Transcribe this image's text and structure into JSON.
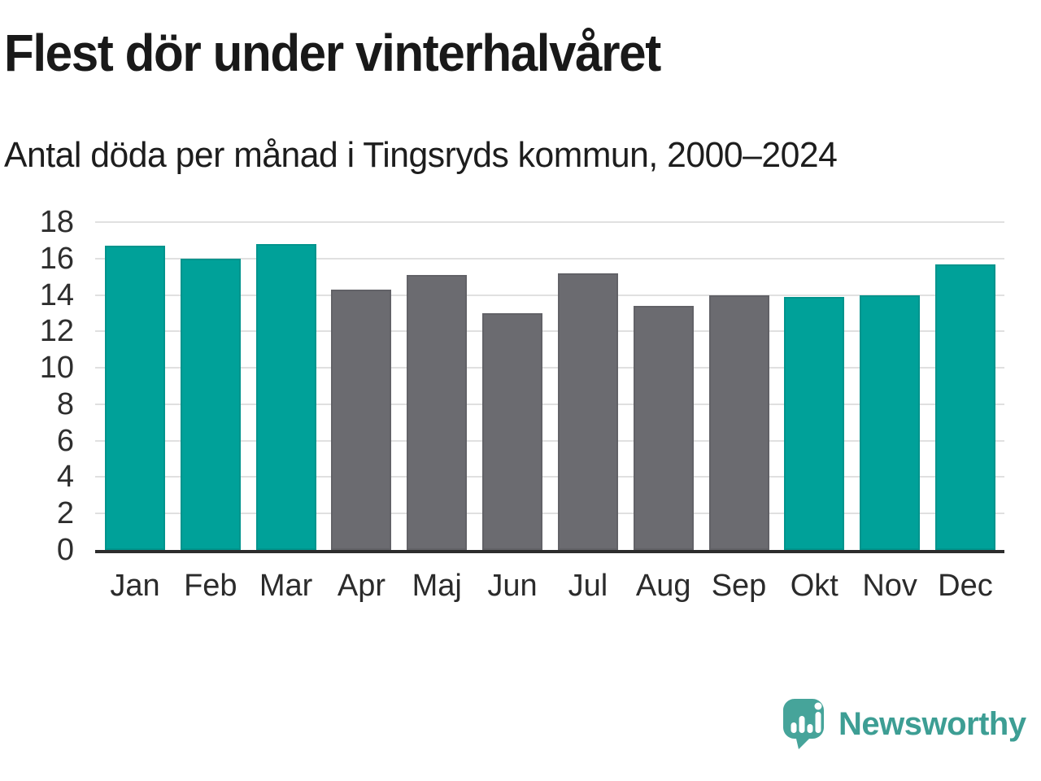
{
  "header": {
    "title": "Flest dör under vinterhalvåret",
    "subtitle": "Antal döda per månad i Tingsryds kommun, 2000–2024"
  },
  "chart_data": {
    "type": "bar",
    "title": "Flest dör under vinterhalvåret",
    "subtitle": "Antal döda per månad i Tingsryds kommun, 2000–2024",
    "categories": [
      "Jan",
      "Feb",
      "Mar",
      "Apr",
      "Maj",
      "Jun",
      "Jul",
      "Aug",
      "Sep",
      "Okt",
      "Nov",
      "Dec"
    ],
    "values": [
      16.7,
      16.0,
      16.8,
      14.3,
      15.1,
      13.0,
      15.2,
      13.4,
      14.0,
      13.9,
      14.0,
      15.7
    ],
    "bar_groups": [
      "winter",
      "winter",
      "winter",
      "summer",
      "summer",
      "summer",
      "summer",
      "summer",
      "summer",
      "winter",
      "winter",
      "winter"
    ],
    "group_colors": {
      "winter": "#00a199",
      "summer": "#6b6b70"
    },
    "xlabel": "",
    "ylabel": "",
    "ylim": [
      0,
      18
    ],
    "yticks": [
      0,
      2,
      4,
      6,
      8,
      10,
      12,
      14,
      16,
      18
    ],
    "grid": "horizontal-only",
    "gridline_color": "#e0e0e0",
    "axis_color": "#2d2d2d",
    "legend": "none"
  },
  "footer": {
    "brand": "Newsworthy",
    "brand_color": "#3d9e94",
    "logo_icon": "speech-bubble-bar-chart-icon",
    "logo_bubble_color": "#46a49a",
    "logo_glyph_color": "#ffffff"
  }
}
